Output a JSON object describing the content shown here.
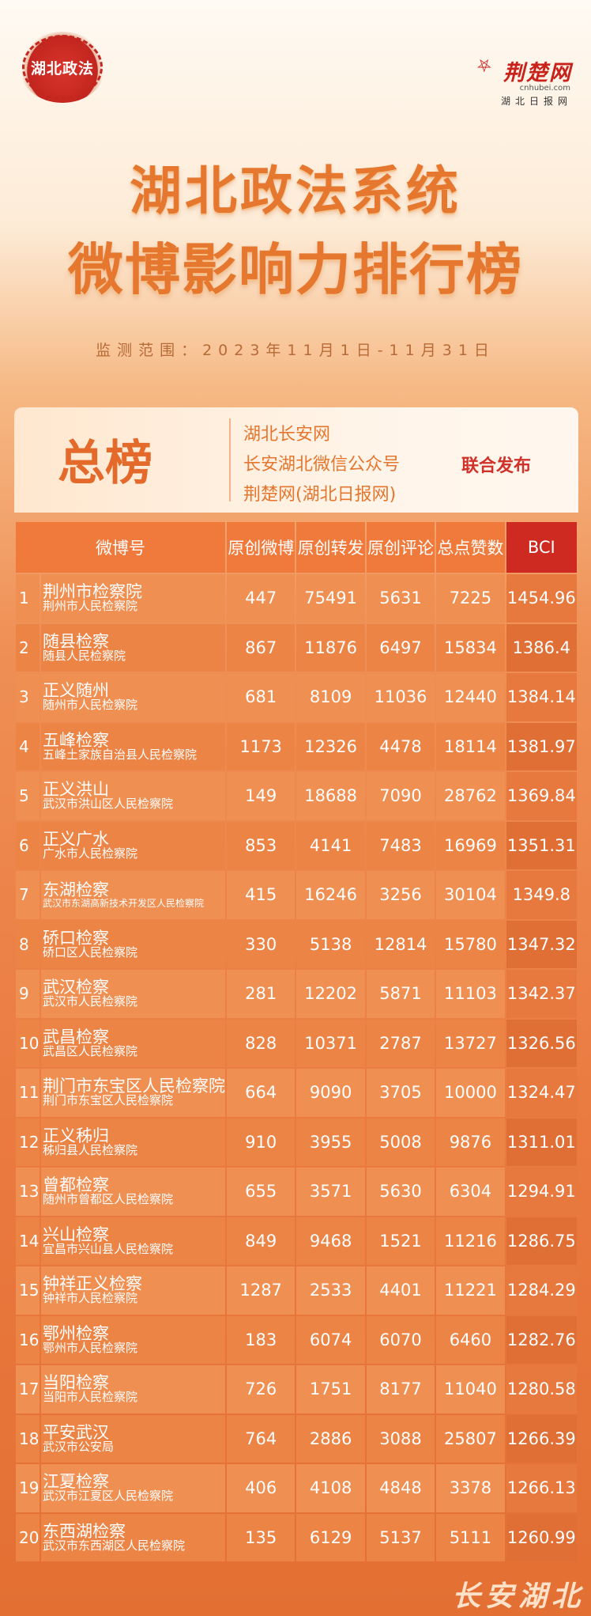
{
  "logo_left": "湖北政法",
  "logo_right": {
    "name": "荆楚网",
    "domain": "cnhubei.com",
    "sub": "湖北日报网"
  },
  "title_line1": "湖北政法系统",
  "title_line2": "微博影响力排行榜",
  "period": "监测范围：2023年11月1日-11月31日",
  "board_title": "总榜",
  "sources": [
    "湖北长安网",
    "长安湖北微信公众号",
    "荆楚网(湖北日报网)"
  ],
  "joint_release": "联合发布",
  "columns": [
    "微博号",
    "原创微博",
    "原创转发",
    "原创评论",
    "总点赞数",
    "BCI"
  ],
  "rows": [
    {
      "rank": "1",
      "name": "荆州市检察院",
      "org": "荆州市人民检察院",
      "weibo": "447",
      "forward": "75491",
      "comment": "5631",
      "likes": "7225",
      "bci": "1454.96"
    },
    {
      "rank": "2",
      "name": "随县检察",
      "org": "随县人民检察院",
      "weibo": "867",
      "forward": "11876",
      "comment": "6497",
      "likes": "15834",
      "bci": "1386.4"
    },
    {
      "rank": "3",
      "name": "正义随州",
      "org": "随州市人民检察院",
      "weibo": "681",
      "forward": "8109",
      "comment": "11036",
      "likes": "12440",
      "bci": "1384.14"
    },
    {
      "rank": "4",
      "name": "五峰检察",
      "org": "五峰土家族自治县人民检察院",
      "weibo": "1173",
      "forward": "12326",
      "comment": "4478",
      "likes": "18114",
      "bci": "1381.97"
    },
    {
      "rank": "5",
      "name": "正义洪山",
      "org": "武汉市洪山区人民检察院",
      "weibo": "149",
      "forward": "18688",
      "comment": "7090",
      "likes": "28762",
      "bci": "1369.84"
    },
    {
      "rank": "6",
      "name": "正义广水",
      "org": "广水市人民检察院",
      "weibo": "853",
      "forward": "4141",
      "comment": "7483",
      "likes": "16969",
      "bci": "1351.31"
    },
    {
      "rank": "7",
      "name": "东湖检察",
      "org": "武汉市东湖高新技术开发区人民检察院",
      "weibo": "415",
      "forward": "16246",
      "comment": "3256",
      "likes": "30104",
      "bci": "1349.8"
    },
    {
      "rank": "8",
      "name": "硚口检察",
      "org": "硚口区人民检察院",
      "weibo": "330",
      "forward": "5138",
      "comment": "12814",
      "likes": "15780",
      "bci": "1347.32"
    },
    {
      "rank": "9",
      "name": "武汉检察",
      "org": "武汉市人民检察院",
      "weibo": "281",
      "forward": "12202",
      "comment": "5871",
      "likes": "11103",
      "bci": "1342.37"
    },
    {
      "rank": "10",
      "name": "武昌检察",
      "org": "武昌区人民检察院",
      "weibo": "828",
      "forward": "10371",
      "comment": "2787",
      "likes": "13727",
      "bci": "1326.56"
    },
    {
      "rank": "11",
      "name": "荆门市东宝区人民检察院",
      "org": "荆门市东宝区人民检察院",
      "weibo": "664",
      "forward": "9090",
      "comment": "3705",
      "likes": "10000",
      "bci": "1324.47"
    },
    {
      "rank": "12",
      "name": "正义秭归",
      "org": "秭归县人民检察院",
      "weibo": "910",
      "forward": "3955",
      "comment": "5008",
      "likes": "9876",
      "bci": "1311.01"
    },
    {
      "rank": "13",
      "name": "曾都检察",
      "org": "随州市曾都区人民检察院",
      "weibo": "655",
      "forward": "3571",
      "comment": "5630",
      "likes": "6304",
      "bci": "1294.91"
    },
    {
      "rank": "14",
      "name": "兴山检察",
      "org": "宜昌市兴山县人民检察院",
      "weibo": "849",
      "forward": "9468",
      "comment": "1521",
      "likes": "11216",
      "bci": "1286.75"
    },
    {
      "rank": "15",
      "name": "钟祥正义检察",
      "org": "钟祥市人民检察院",
      "weibo": "1287",
      "forward": "2533",
      "comment": "4401",
      "likes": "11221",
      "bci": "1284.29"
    },
    {
      "rank": "16",
      "name": "鄂州检察",
      "org": "鄂州市人民检察院",
      "weibo": "183",
      "forward": "6074",
      "comment": "6070",
      "likes": "6460",
      "bci": "1282.76"
    },
    {
      "rank": "17",
      "name": "当阳检察",
      "org": "当阳市人民检察院",
      "weibo": "726",
      "forward": "1751",
      "comment": "8177",
      "likes": "11040",
      "bci": "1280.58"
    },
    {
      "rank": "18",
      "name": "平安武汉",
      "org": "武汉市公安局",
      "weibo": "764",
      "forward": "2886",
      "comment": "3088",
      "likes": "25807",
      "bci": "1266.39"
    },
    {
      "rank": "19",
      "name": "江夏检察",
      "org": "武汉市江夏区人民检察院",
      "weibo": "406",
      "forward": "4108",
      "comment": "4848",
      "likes": "3378",
      "bci": "1266.13"
    },
    {
      "rank": "20",
      "name": "东西湖检察",
      "org": "武汉市东西湖区人民检察院",
      "weibo": "135",
      "forward": "6129",
      "comment": "5137",
      "likes": "5111",
      "bci": "1260.99"
    }
  ],
  "watermark": "长安湖北"
}
